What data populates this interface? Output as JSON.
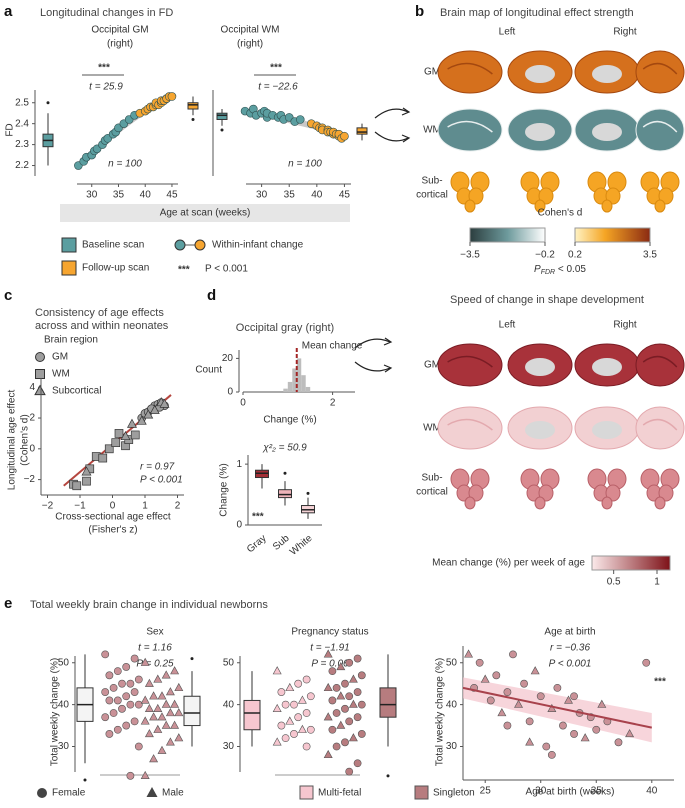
{
  "figure": {
    "panels": [
      "a",
      "b",
      "c",
      "d",
      "e"
    ],
    "a": {
      "title": "Longitudinal changes in FD",
      "xlabel": "Age at scan (weeks)",
      "legend": {
        "baseline": "Baseline scan",
        "followup": "Follow-up scan",
        "change": "Within-infant change",
        "sig": "***",
        "sig_text": "P < 0.001"
      }
    },
    "b": {
      "title": "Brain map of longitudinal effect strength",
      "columns": [
        "Left",
        "Right"
      ],
      "rows": [
        "GM",
        "WM",
        [
          "Sub-",
          "cortical"
        ]
      ],
      "colorbar": {
        "title": "Cohen's d",
        "ticks": [
          {
            "value": -3.5,
            "label": "−3.5"
          },
          {
            "value": -0.2,
            "label": "−0.2"
          },
          0.2,
          3.5
        ],
        "note": {
          "symbol": "P",
          "subscript": "FDR",
          "text": " < 0.05"
        }
      }
    },
    "d": {
      "title": "Speed of change in shape development",
      "columns": [
        "Left",
        "Right"
      ],
      "rows": [
        "GM",
        "WM",
        [
          "Sub-",
          "cortical"
        ]
      ],
      "colorbar": {
        "title": "Mean change (%) per week of age",
        "lim": [
          0.25,
          1.15
        ],
        "ticks": [
          0.5,
          1
        ]
      }
    },
    "e": {
      "title": "Total weekly brain change in individual newborns"
    }
  },
  "chart_data": [
    {
      "type": "paired",
      "title": "Occipital GM",
      "subtitle": "(right)",
      "ylabel": "FD",
      "ylim": [
        2.15,
        2.58
      ],
      "yticks": [
        2.2,
        2.3,
        2.4,
        2.5
      ],
      "xlim": [
        25,
        48
      ],
      "xticks": [
        30,
        35,
        40,
        45
      ],
      "series": [
        {
          "color": "#5b9ea0",
          "x": [
            27.5,
            28.5,
            29,
            30,
            30.5,
            31,
            32,
            32.5,
            33,
            34,
            34.5,
            35,
            36,
            37,
            38
          ],
          "values": [
            2.2,
            2.22,
            2.24,
            2.25,
            2.27,
            2.28,
            2.3,
            2.32,
            2.33,
            2.35,
            2.36,
            2.38,
            2.4,
            2.42,
            2.44
          ]
        },
        {
          "color": "#f6a530",
          "x": [
            39,
            40,
            40.5,
            41,
            41.5,
            42,
            42,
            42.5,
            43,
            43,
            43.5,
            44,
            44,
            44.5,
            45
          ],
          "values": [
            2.45,
            2.46,
            2.47,
            2.48,
            2.48,
            2.49,
            2.5,
            2.49,
            2.5,
            2.51,
            2.51,
            2.52,
            2.52,
            2.53,
            2.53
          ]
        }
      ],
      "boxes": [
        {
          "whisker_low": 2.2,
          "q1": 2.29,
          "median": 2.32,
          "q3": 2.35,
          "whisker_high": 2.45,
          "outliers": [
            2.5
          ]
        },
        {
          "whisker_low": 2.44,
          "q1": 2.47,
          "median": 2.49,
          "q3": 2.5,
          "whisker_high": 2.53,
          "outliers": [
            2.42
          ]
        }
      ],
      "significance": "***",
      "stat": "t = 25.9",
      "n_label": "n = 100"
    },
    {
      "type": "paired",
      "title": "Occipital WM",
      "subtitle": "(right)",
      "ylim": [
        2.15,
        2.58
      ],
      "xlim": [
        25,
        48
      ],
      "xticks": [
        30,
        35,
        40,
        45
      ],
      "series": [
        {
          "color": "#5b9ea0",
          "x": [
            27,
            28,
            28.5,
            29,
            30,
            30.5,
            31,
            31,
            32,
            33,
            33.5,
            34,
            35,
            36,
            37
          ],
          "values": [
            2.46,
            2.45,
            2.47,
            2.44,
            2.45,
            2.46,
            2.43,
            2.45,
            2.44,
            2.43,
            2.44,
            2.42,
            2.43,
            2.41,
            2.42
          ]
        },
        {
          "color": "#f6a530",
          "x": [
            39,
            40,
            40.5,
            41,
            41,
            42,
            42,
            42.5,
            43,
            43,
            43.5,
            44,
            44,
            44.5,
            45
          ],
          "values": [
            2.4,
            2.39,
            2.38,
            2.38,
            2.37,
            2.37,
            2.36,
            2.36,
            2.35,
            2.36,
            2.35,
            2.34,
            2.35,
            2.33,
            2.34
          ]
        }
      ],
      "boxes": [
        {
          "whisker_low": 2.39,
          "q1": 2.42,
          "median": 2.44,
          "q3": 2.45,
          "whisker_high": 2.47,
          "outliers": [
            2.37
          ]
        },
        {
          "whisker_low": 2.32,
          "q1": 2.35,
          "median": 2.36,
          "q3": 2.38,
          "whisker_high": 2.4,
          "outliers": []
        }
      ],
      "significance": "***",
      "stat": "t = −22.6",
      "n_label": "n = 100"
    },
    {
      "type": "scatter",
      "title": [
        "Consistency of age effects",
        "across and within neonates"
      ],
      "legend_title": "Brain region",
      "xlabel": [
        "Cross-sectional age effect",
        "(Fisher's z)"
      ],
      "ylabel": [
        "Longitudinal age effect",
        "(Cohen's d)"
      ],
      "xlim": [
        -2.2,
        2.2
      ],
      "xticks": [
        {
          "value": -2,
          "label": "−2"
        },
        {
          "value": -1,
          "label": "−1"
        },
        0,
        1,
        2
      ],
      "ylim": [
        -3,
        4.6
      ],
      "yticks": [
        {
          "value": -2,
          "label": "−2"
        },
        0,
        2,
        4
      ],
      "series": [
        {
          "name": "GM",
          "marker": "circle",
          "color": "#9e9e9e",
          "x": [
            0.9,
            1.0,
            1.1,
            1.2,
            1.3,
            1.4,
            1.5,
            1.6,
            1.2,
            1.45
          ],
          "values": [
            2.0,
            2.3,
            2.4,
            2.6,
            2.8,
            2.9,
            3.0,
            2.8,
            2.6,
            2.7
          ]
        },
        {
          "name": "WM",
          "marker": "square",
          "color": "#9e9e9e",
          "x": [
            -1.2,
            -1.1,
            -0.8,
            -0.7,
            -0.5,
            -0.3,
            -0.1,
            0.1,
            0.2,
            0.4,
            0.5,
            0.7
          ],
          "values": [
            -2.3,
            -2.4,
            -2.1,
            -1.3,
            -0.5,
            -0.6,
            0,
            0.4,
            1.0,
            0.2,
            0.6,
            0.9
          ]
        },
        {
          "name": "Subcortical",
          "marker": "triangle",
          "color": "#9e9e9e",
          "x": [
            -0.8,
            0.4,
            0.6,
            0.9,
            1.1,
            1.3,
            1.5,
            1.6
          ],
          "values": [
            -1.5,
            0.8,
            1.6,
            1.8,
            2.2,
            2.5,
            3.0,
            2.9
          ]
        }
      ],
      "fit": {
        "color": "#b5463f",
        "x": [
          -1.5,
          1.8
        ],
        "values": [
          -2.4,
          3.5
        ]
      },
      "annotations": [
        "r = 0.97",
        "P < 0.001"
      ]
    },
    {
      "type": "histogram",
      "title": "Occipital gray (right)",
      "xlabel": "Change (%)",
      "ylabel": "Count",
      "xlim": [
        0,
        2.5
      ],
      "xticks": [
        0,
        2
      ],
      "ylim": [
        0,
        25
      ],
      "yticks": [
        0,
        20
      ],
      "bins": [
        0.9,
        1.0,
        1.1,
        1.2,
        1.3,
        1.4,
        1.5
      ],
      "counts": [
        2,
        6,
        14,
        20,
        10,
        3
      ],
      "color": "#bdbdbd",
      "mean": 1.2,
      "mean_label": "Mean change",
      "mean_color": "#a32626"
    },
    {
      "type": "box",
      "stat": "χ²₂ = 50.9",
      "ylabel": "Change (%)",
      "ylim": [
        0,
        1.15
      ],
      "yticks": [
        0,
        1
      ],
      "categories": [
        "Gray",
        "Sub",
        "White"
      ],
      "colors": [
        "#a32f36",
        "#eeb3b9",
        "#f5d3d6"
      ],
      "boxes": [
        {
          "whisker_low": 0.6,
          "q1": 0.78,
          "median": 0.85,
          "q3": 0.9,
          "whisker_high": 1.0,
          "outliers": []
        },
        {
          "whisker_low": 0.32,
          "q1": 0.45,
          "median": 0.5,
          "q3": 0.58,
          "whisker_high": 0.72,
          "outliers": [
            0.85
          ]
        },
        {
          "whisker_low": 0.1,
          "q1": 0.2,
          "median": 0.25,
          "q3": 0.32,
          "whisker_high": 0.45,
          "outliers": [
            0.52
          ]
        }
      ],
      "significance": "***"
    },
    {
      "type": "swarm",
      "title": "Sex",
      "annotations": [
        "t = 1.16",
        "P = 0.25"
      ],
      "ylabel": "Total weekly change (%)",
      "ylim": [
        22,
        54
      ],
      "yticks": [
        30,
        40,
        50
      ],
      "groups": [
        {
          "name": "Female",
          "marker": "circle",
          "color": "#c99197",
          "box_color": "#f4f4f4",
          "values": [
            52,
            51,
            49,
            48,
            47,
            46,
            45,
            45,
            44,
            43,
            43,
            42,
            41,
            41,
            40,
            40,
            39,
            38,
            37,
            36,
            35,
            34,
            33,
            30,
            23
          ],
          "box": {
            "whisker_low": 26,
            "q1": 36,
            "median": 40,
            "q3": 44,
            "whisker_high": 52,
            "outliers": [
              22
            ]
          }
        },
        {
          "name": "Male",
          "marker": "triangle",
          "color": "#c99197",
          "box_color": "#f4f4f4",
          "values": [
            50,
            48,
            47,
            46,
            45,
            44,
            43,
            42,
            42,
            41,
            40,
            40,
            39,
            39,
            38,
            38,
            37,
            37,
            36,
            35,
            35,
            34,
            33,
            32,
            31,
            29,
            27,
            23
          ],
          "box": {
            "whisker_low": 30,
            "q1": 35,
            "median": 38,
            "q3": 42,
            "whisker_high": 48,
            "outliers": [
              51
            ]
          }
        }
      ]
    },
    {
      "type": "swarm",
      "title": "Pregnancy status",
      "annotations": [
        "t = −1.91",
        "P = 0.06"
      ],
      "ylim": [
        22,
        54
      ],
      "yticks": [
        30,
        40,
        50
      ],
      "groups": [
        {
          "name": "Multi-fetal",
          "color": "#f6c6cf",
          "box_color": "#f6c6cf",
          "values": [
            48,
            46,
            45,
            44,
            43,
            42,
            41,
            40,
            40,
            39,
            38,
            37,
            36,
            35,
            34,
            34,
            33,
            32,
            31,
            30
          ],
          "box": {
            "whisker_low": 30,
            "q1": 34,
            "median": 38,
            "q3": 41,
            "whisker_high": 48,
            "outliers": []
          }
        },
        {
          "name": "Singleton",
          "color": "#b77c7f",
          "box_color": "#b77c7f",
          "values": [
            52,
            51,
            50,
            49,
            48,
            47,
            46,
            45,
            44,
            44,
            43,
            42,
            42,
            41,
            40,
            40,
            39,
            38,
            37,
            37,
            36,
            35,
            34,
            33,
            32,
            31,
            30,
            28,
            26,
            24
          ],
          "box": {
            "whisker_low": 30,
            "q1": 37,
            "median": 40,
            "q3": 44,
            "whisker_high": 52,
            "outliers": [
              23
            ]
          }
        }
      ]
    },
    {
      "type": "scatter_fit",
      "title": "Age at birth",
      "annotations": [
        "r = −0.36",
        "P < 0.001"
      ],
      "significance": "***",
      "xlabel": "Age at birth (weeks)",
      "ylabel": "Total weekly change (%)",
      "xlim": [
        23,
        42
      ],
      "xticks": [
        25,
        30,
        35,
        40
      ],
      "ylim": [
        22,
        54
      ],
      "yticks": [
        30,
        40,
        50
      ],
      "color": "#c99197",
      "x": [
        23.5,
        24,
        24.5,
        25,
        25.5,
        26,
        26.5,
        27,
        27.5,
        28,
        28.5,
        29,
        29.5,
        30,
        30.5,
        31,
        31.5,
        32,
        32.5,
        33,
        33.5,
        34,
        34.5,
        35,
        35.5,
        36,
        37,
        38,
        39.5,
        27,
        29,
        31,
        33
      ],
      "values": [
        52,
        44,
        50,
        46,
        41,
        47,
        38,
        43,
        52,
        40,
        45,
        36,
        48,
        42,
        30,
        39,
        44,
        35,
        41,
        33,
        38,
        32,
        37,
        34,
        40,
        36,
        31,
        33,
        50,
        35,
        31,
        28,
        42
      ],
      "fit": {
        "color": "#a8424c",
        "x": [
          23,
          40
        ],
        "values": [
          44,
          34.5
        ],
        "ci_lower": [
          41.5,
          31
        ],
        "ci_upper": [
          46.5,
          38
        ]
      }
    }
  ]
}
